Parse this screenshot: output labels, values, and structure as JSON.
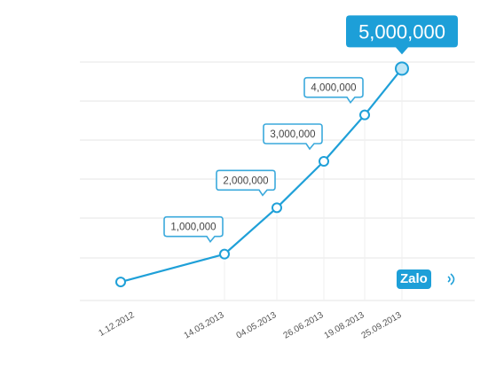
{
  "chart_data": {
    "type": "line",
    "title": "",
    "xlabel": "",
    "ylabel": "",
    "ylim": [
      0,
      6000000
    ],
    "grid": true,
    "x": [
      "1.12.2012",
      "14.03.2013",
      "04.05.2013",
      "26.06.2013",
      "19.08.2013",
      "25.09.2013"
    ],
    "series": [
      {
        "values": [
          400000,
          1000000,
          2000000,
          3000000,
          4000000,
          5000000
        ],
        "labels": [
          "",
          "1,000,000",
          "2,000,000",
          "3,000,000",
          "4,000,000",
          "5,000,000"
        ]
      }
    ],
    "colors": {
      "line": "#1fa0d8",
      "accent": "#1d9fd8"
    }
  },
  "logo": {
    "text": "Zalo",
    "icon": "wifi-waves-icon"
  }
}
